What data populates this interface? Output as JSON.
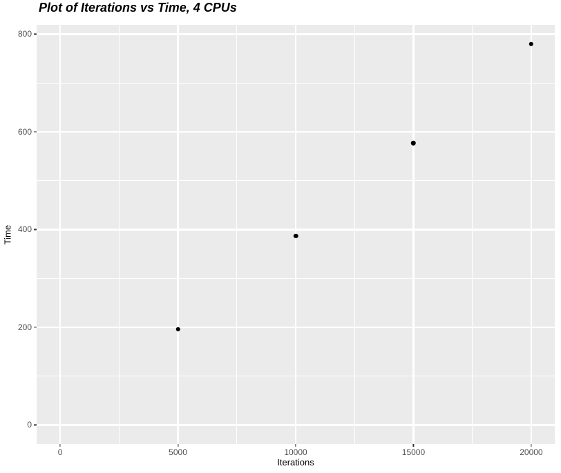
{
  "chart_data": {
    "type": "scatter",
    "title": "Plot of Iterations vs Time, 4 CPUs",
    "xlabel": "Iterations",
    "ylabel": "Time",
    "points": [
      {
        "x": 5000,
        "y": 196
      },
      {
        "x": 10000,
        "y": 387
      },
      {
        "x": 15000,
        "y": 577
      },
      {
        "x": 20000,
        "y": 780
      }
    ],
    "xlim": [
      -1000,
      21000
    ],
    "ylim": [
      -39,
      819
    ],
    "x_major_ticks": [
      0,
      5000,
      10000,
      15000,
      20000
    ],
    "y_major_ticks": [
      0,
      200,
      400,
      600,
      800
    ],
    "x_minor_gridlines": [
      2500,
      7500,
      12500,
      17500
    ],
    "y_minor_gridlines": [
      100,
      300,
      500,
      700
    ],
    "grid": "on",
    "legend": "none",
    "theme": {
      "panel_bg": "#EBEBEB",
      "grid_color": "#FFFFFF",
      "point_color": "#000000",
      "tick_label_color": "#4D4D4D",
      "tick_mark_color": "#333333",
      "axis_title_color": "#000000",
      "title_color": "#000000"
    }
  }
}
